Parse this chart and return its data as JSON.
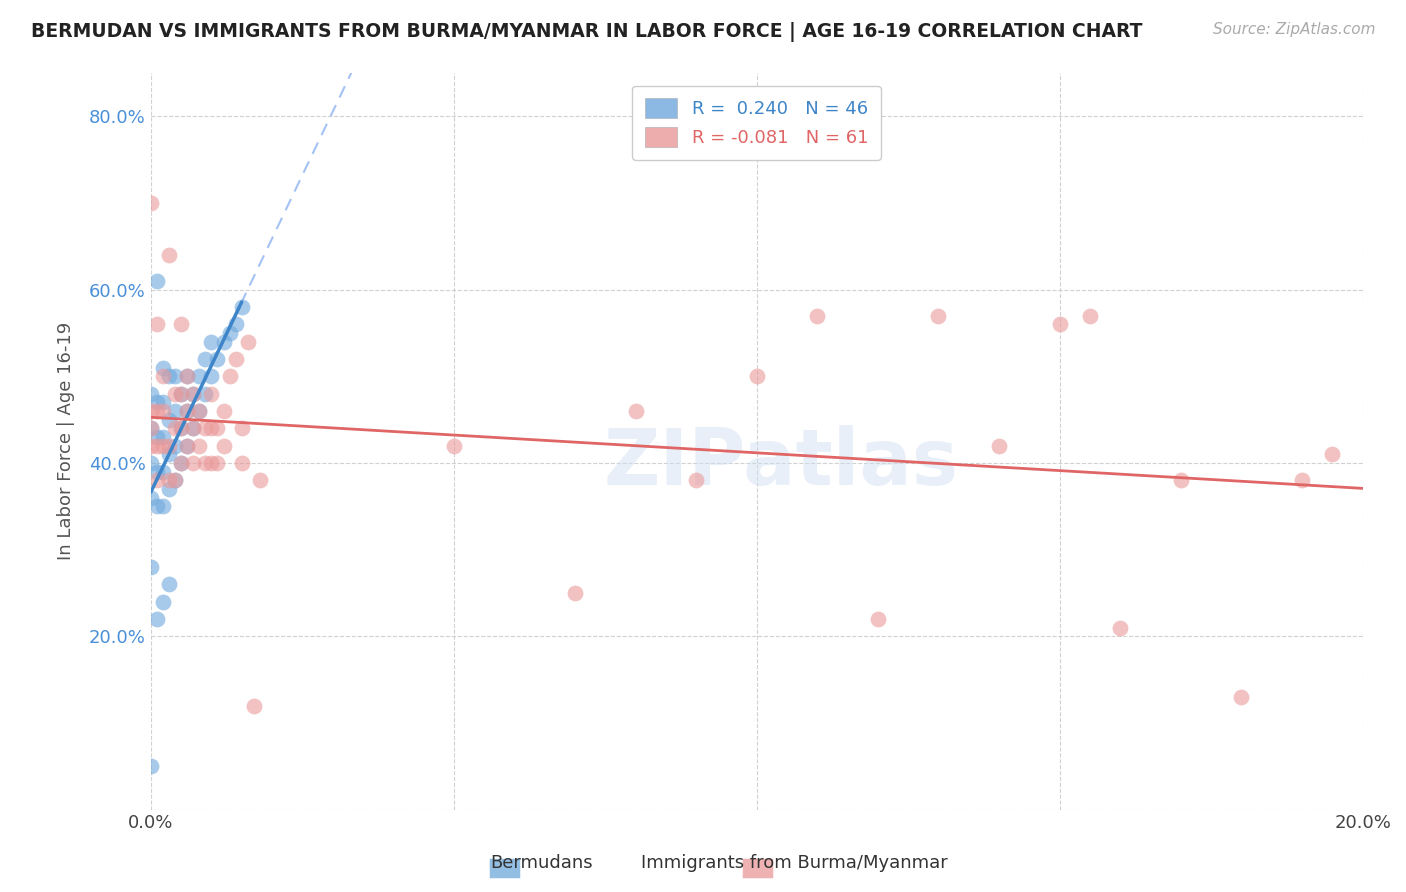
{
  "title": "BERMUDAN VS IMMIGRANTS FROM BURMA/MYANMAR IN LABOR FORCE | AGE 16-19 CORRELATION CHART",
  "source": "Source: ZipAtlas.com",
  "ylabel": "In Labor Force | Age 16-19",
  "watermark": "ZIPatlas",
  "blue_R": 0.24,
  "blue_N": 46,
  "pink_R": -0.081,
  "pink_N": 61,
  "blue_color": "#6fa8dc",
  "pink_color": "#ea9999",
  "blue_line_color": "#3d85c8",
  "pink_line_color": "#e06666",
  "dashed_line_color": "#a4c2f4",
  "legend_label_blue": "Bermudans",
  "legend_label_pink": "Immigrants from Burma/Myanmar",
  "blue_x": [
    0.0,
    0.0,
    0.0,
    0.0,
    0.0,
    0.0,
    0.001,
    0.001,
    0.001,
    0.001,
    0.001,
    0.002,
    0.002,
    0.002,
    0.002,
    0.002,
    0.003,
    0.003,
    0.003,
    0.003,
    0.004,
    0.004,
    0.004,
    0.004,
    0.005,
    0.005,
    0.005,
    0.006,
    0.006,
    0.006,
    0.007,
    0.007,
    0.008,
    0.008,
    0.009,
    0.009,
    0.01,
    0.01,
    0.011,
    0.012,
    0.013,
    0.014,
    0.015,
    0.001,
    0.002,
    0.003
  ],
  "blue_y": [
    0.05,
    0.28,
    0.36,
    0.4,
    0.44,
    0.48,
    0.35,
    0.39,
    0.43,
    0.47,
    0.61,
    0.35,
    0.39,
    0.43,
    0.47,
    0.51,
    0.37,
    0.41,
    0.45,
    0.5,
    0.38,
    0.42,
    0.46,
    0.5,
    0.4,
    0.44,
    0.48,
    0.42,
    0.46,
    0.5,
    0.44,
    0.48,
    0.46,
    0.5,
    0.48,
    0.52,
    0.5,
    0.54,
    0.52,
    0.54,
    0.55,
    0.56,
    0.58,
    0.22,
    0.24,
    0.26
  ],
  "pink_x": [
    0.0,
    0.0,
    0.0,
    0.0,
    0.001,
    0.001,
    0.001,
    0.001,
    0.002,
    0.002,
    0.002,
    0.003,
    0.003,
    0.003,
    0.004,
    0.004,
    0.004,
    0.005,
    0.005,
    0.005,
    0.005,
    0.006,
    0.006,
    0.006,
    0.007,
    0.007,
    0.007,
    0.008,
    0.008,
    0.009,
    0.009,
    0.01,
    0.01,
    0.01,
    0.011,
    0.011,
    0.012,
    0.012,
    0.013,
    0.014,
    0.015,
    0.015,
    0.016,
    0.017,
    0.018,
    0.05,
    0.07,
    0.08,
    0.09,
    0.1,
    0.11,
    0.12,
    0.13,
    0.14,
    0.15,
    0.155,
    0.16,
    0.17,
    0.18,
    0.19,
    0.195
  ],
  "pink_y": [
    0.42,
    0.44,
    0.46,
    0.7,
    0.38,
    0.42,
    0.46,
    0.56,
    0.42,
    0.46,
    0.5,
    0.38,
    0.42,
    0.64,
    0.38,
    0.44,
    0.48,
    0.4,
    0.44,
    0.48,
    0.56,
    0.42,
    0.46,
    0.5,
    0.4,
    0.44,
    0.48,
    0.42,
    0.46,
    0.4,
    0.44,
    0.4,
    0.44,
    0.48,
    0.4,
    0.44,
    0.42,
    0.46,
    0.5,
    0.52,
    0.4,
    0.44,
    0.54,
    0.12,
    0.38,
    0.42,
    0.25,
    0.46,
    0.38,
    0.5,
    0.57,
    0.22,
    0.57,
    0.42,
    0.56,
    0.57,
    0.21,
    0.38,
    0.13,
    0.38,
    0.41
  ]
}
